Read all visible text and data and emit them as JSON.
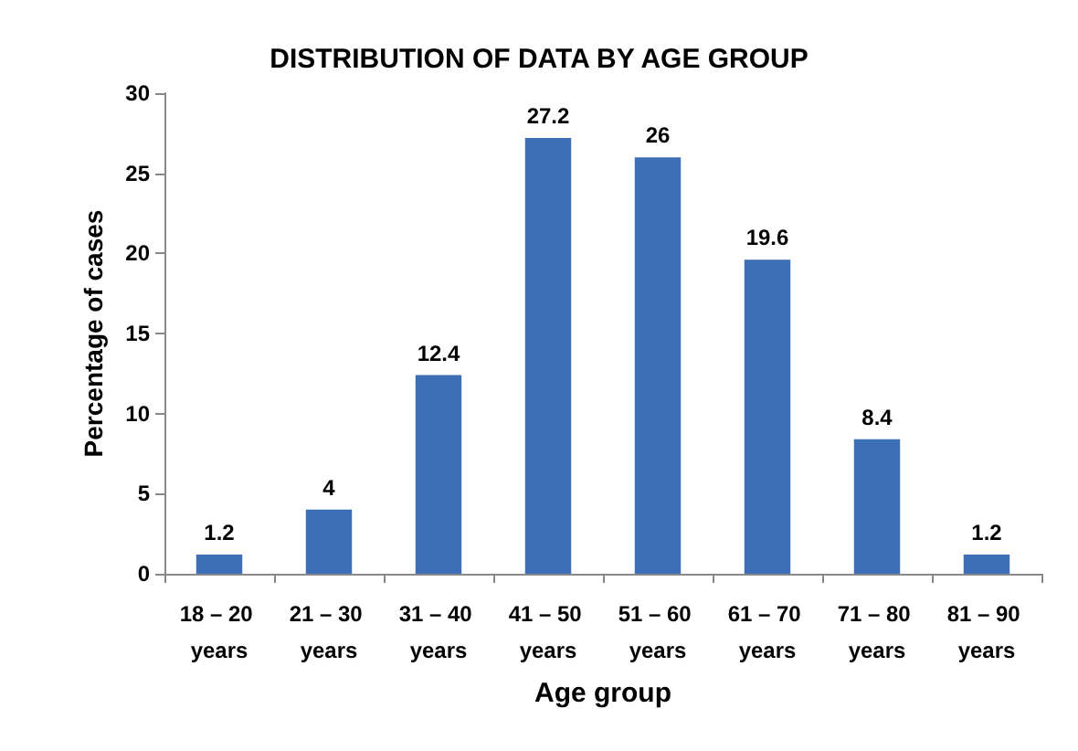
{
  "chart_data": {
    "type": "bar",
    "title": "DISTRIBUTION OF DATA BY AGE GROUP",
    "xlabel": "Age group",
    "ylabel": "Percentage of cases",
    "categories": [
      "18 – 20 years",
      "21 – 30 years",
      "31 – 40 years",
      "41 – 50 years",
      "51 – 60 years",
      "61 – 70 years",
      "71 – 80 years",
      "81 – 90 years"
    ],
    "values": [
      1.2,
      4,
      12.4,
      27.2,
      26,
      19.6,
      8.4,
      1.2
    ],
    "color": "#3d6fb6",
    "ylim": [
      0,
      30
    ],
    "yticks": [
      0,
      5,
      10,
      15,
      20,
      25,
      30
    ],
    "grid": false,
    "data_labels": true
  }
}
